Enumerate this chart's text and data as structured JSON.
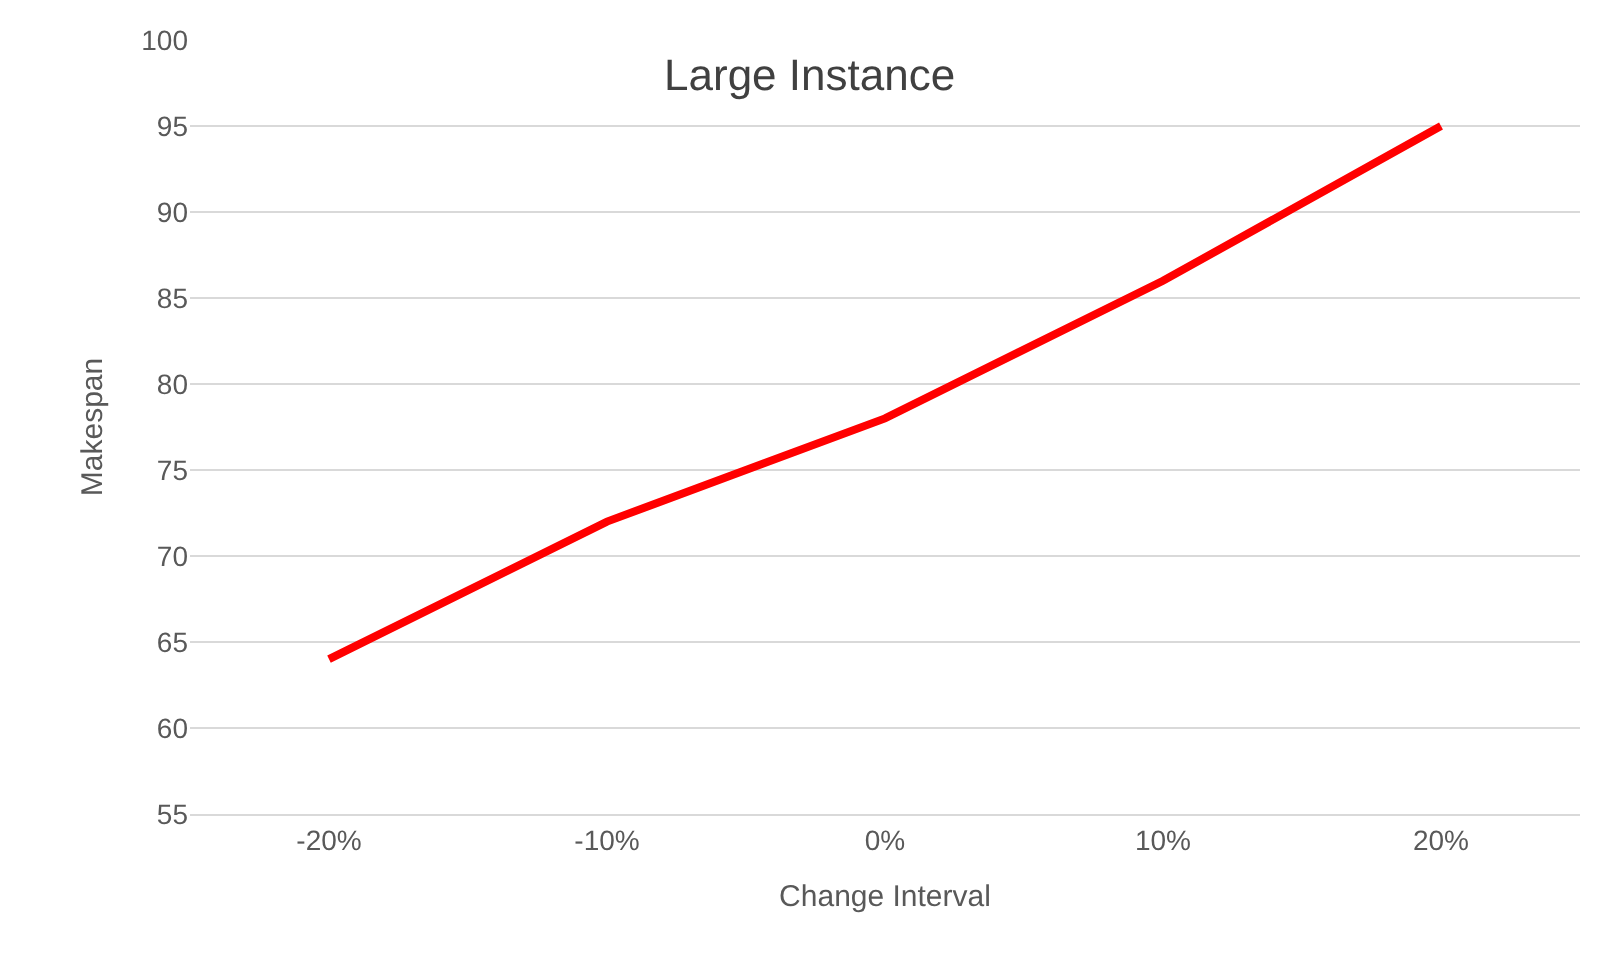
{
  "chart_data": {
    "type": "line",
    "title": "Large Instance",
    "xlabel": "Change Interval",
    "ylabel": "Makespan",
    "categories": [
      "-20%",
      "-10%",
      "0%",
      "10%",
      "20%"
    ],
    "series": [
      {
        "color": "#ff0000",
        "values": [
          64,
          72,
          78,
          86,
          95
        ]
      }
    ],
    "ylim": [
      55,
      100
    ],
    "yticks": [
      55,
      60,
      65,
      70,
      75,
      80,
      85,
      90,
      95,
      100
    ],
    "grid": "y",
    "legend": false,
    "marker": "none",
    "line_style": "solid"
  }
}
